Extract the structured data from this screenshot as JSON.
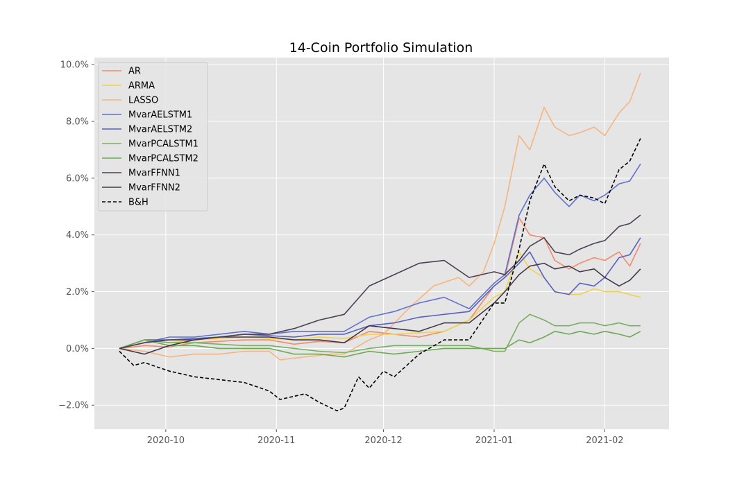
{
  "chart_data": {
    "type": "line",
    "title": "14-Coin Portfolio Simulation",
    "xlabel": "",
    "ylabel": "",
    "x_tick_labels": [
      "2020-10",
      "2020-11",
      "2020-12",
      "2021-01",
      "2021-02"
    ],
    "x_tick_dates": [
      "2020-10-01",
      "2020-11-01",
      "2020-12-01",
      "2021-01-01",
      "2021-02-01"
    ],
    "xlim": [
      "2020-09-11",
      "2021-02-19"
    ],
    "y_tick_labels": [
      "−2.0%",
      "0.0%",
      "2.0%",
      "4.0%",
      "6.0%",
      "8.0%",
      "10.0%"
    ],
    "y_ticks": [
      -2,
      0,
      2,
      4,
      6,
      8,
      10
    ],
    "ylim": [
      -2.85,
      10.25
    ],
    "y_unit": "%",
    "grid": true,
    "legend_position": "upper-left",
    "background": "#e5e5e5",
    "grid_color": "#ffffff",
    "series": [
      {
        "name": "AR",
        "color": "#f28b6b",
        "dash": "solid",
        "x": [
          "2020-09-18",
          "2020-09-25",
          "2020-10-02",
          "2020-10-09",
          "2020-10-16",
          "2020-10-23",
          "2020-10-30",
          "2020-11-06",
          "2020-11-13",
          "2020-11-20",
          "2020-11-27",
          "2020-12-04",
          "2020-12-11",
          "2020-12-18",
          "2020-12-25",
          "2021-01-01",
          "2021-01-04",
          "2021-01-08",
          "2021-01-11",
          "2021-01-15",
          "2021-01-18",
          "2021-01-22",
          "2021-01-25",
          "2021-01-29",
          "2021-02-01",
          "2021-02-05",
          "2021-02-08",
          "2021-02-11"
        ],
        "values": [
          0.0,
          0.1,
          0.05,
          0.2,
          0.25,
          0.3,
          0.3,
          0.15,
          0.25,
          0.2,
          0.6,
          0.5,
          0.4,
          0.6,
          1.0,
          2.2,
          2.5,
          4.6,
          4.0,
          3.9,
          3.1,
          2.8,
          3.0,
          3.2,
          3.1,
          3.4,
          2.9,
          3.7
        ]
      },
      {
        "name": "ARMA",
        "color": "#f0d24c",
        "dash": "solid",
        "x": [
          "2020-09-18",
          "2020-09-25",
          "2020-10-02",
          "2020-10-09",
          "2020-10-16",
          "2020-10-23",
          "2020-10-30",
          "2020-11-06",
          "2020-11-13",
          "2020-11-20",
          "2020-11-27",
          "2020-12-04",
          "2020-12-11",
          "2020-12-18",
          "2020-12-25",
          "2021-01-01",
          "2021-01-04",
          "2021-01-08",
          "2021-01-11",
          "2021-01-15",
          "2021-01-18",
          "2021-01-22",
          "2021-01-25",
          "2021-01-29",
          "2021-02-01",
          "2021-02-05",
          "2021-02-08",
          "2021-02-11"
        ],
        "values": [
          0.0,
          0.3,
          0.2,
          0.3,
          0.35,
          0.4,
          0.35,
          0.3,
          0.4,
          0.35,
          0.5,
          0.5,
          0.55,
          0.6,
          1.0,
          1.8,
          2.0,
          3.4,
          2.8,
          2.5,
          2.0,
          1.9,
          1.9,
          2.1,
          2.0,
          2.0,
          1.9,
          1.8
        ]
      },
      {
        "name": "LASSO",
        "color": "#f7b47f",
        "dash": "solid",
        "x": [
          "2020-09-18",
          "2020-09-25",
          "2020-10-02",
          "2020-10-09",
          "2020-10-16",
          "2020-10-23",
          "2020-10-30",
          "2020-11-02",
          "2020-11-09",
          "2020-11-16",
          "2020-11-20",
          "2020-11-27",
          "2020-12-01",
          "2020-12-08",
          "2020-12-15",
          "2020-12-22",
          "2020-12-25",
          "2020-12-29",
          "2021-01-01",
          "2021-01-04",
          "2021-01-08",
          "2021-01-11",
          "2021-01-15",
          "2021-01-18",
          "2021-01-22",
          "2021-01-25",
          "2021-01-29",
          "2021-02-01",
          "2021-02-05",
          "2021-02-08",
          "2021-02-11"
        ],
        "values": [
          0.0,
          -0.1,
          -0.3,
          -0.2,
          -0.2,
          -0.1,
          -0.1,
          -0.4,
          -0.3,
          -0.2,
          -0.2,
          0.3,
          0.5,
          1.4,
          2.2,
          2.5,
          2.2,
          2.7,
          3.7,
          5.0,
          7.5,
          7.0,
          8.5,
          7.8,
          7.5,
          7.6,
          7.8,
          7.5,
          8.3,
          8.7,
          9.7
        ]
      },
      {
        "name": "MvarAELSTM1",
        "color": "#6171cf",
        "dash": "solid",
        "x": [
          "2020-09-18",
          "2020-09-25",
          "2020-10-02",
          "2020-10-09",
          "2020-10-16",
          "2020-10-23",
          "2020-10-30",
          "2020-11-06",
          "2020-11-13",
          "2020-11-20",
          "2020-11-27",
          "2020-12-04",
          "2020-12-11",
          "2020-12-18",
          "2020-12-25",
          "2021-01-01",
          "2021-01-04",
          "2021-01-08",
          "2021-01-11",
          "2021-01-15",
          "2021-01-18",
          "2021-01-22",
          "2021-01-25",
          "2021-01-29",
          "2021-02-01",
          "2021-02-05",
          "2021-02-08",
          "2021-02-11"
        ],
        "values": [
          0.0,
          0.2,
          0.4,
          0.4,
          0.5,
          0.6,
          0.5,
          0.6,
          0.6,
          0.6,
          1.1,
          1.3,
          1.6,
          1.8,
          1.4,
          2.3,
          2.6,
          4.7,
          5.4,
          6.0,
          5.5,
          5.0,
          5.4,
          5.2,
          5.4,
          5.8,
          5.9,
          6.5
        ]
      },
      {
        "name": "MvarAELSTM2",
        "color": "#5a5fbf",
        "dash": "solid",
        "x": [
          "2020-09-18",
          "2020-09-25",
          "2020-10-02",
          "2020-10-09",
          "2020-10-16",
          "2020-10-23",
          "2020-10-30",
          "2020-11-06",
          "2020-11-13",
          "2020-11-20",
          "2020-11-27",
          "2020-12-04",
          "2020-12-11",
          "2020-12-18",
          "2020-12-25",
          "2021-01-01",
          "2021-01-04",
          "2021-01-08",
          "2021-01-11",
          "2021-01-15",
          "2021-01-18",
          "2021-01-22",
          "2021-01-25",
          "2021-01-29",
          "2021-02-01",
          "2021-02-05",
          "2021-02-08",
          "2021-02-11"
        ],
        "values": [
          0.0,
          0.3,
          0.3,
          0.35,
          0.4,
          0.5,
          0.45,
          0.4,
          0.5,
          0.5,
          0.8,
          0.9,
          1.1,
          1.2,
          1.3,
          2.2,
          2.5,
          3.0,
          3.4,
          2.5,
          2.0,
          1.9,
          2.3,
          2.2,
          2.5,
          3.2,
          3.3,
          3.9
        ]
      },
      {
        "name": "MvarPCALSTM1",
        "color": "#78b060",
        "dash": "solid",
        "x": [
          "2020-09-18",
          "2020-09-25",
          "2020-10-02",
          "2020-10-09",
          "2020-10-16",
          "2020-10-23",
          "2020-10-30",
          "2020-11-06",
          "2020-11-13",
          "2020-11-20",
          "2020-11-27",
          "2020-12-04",
          "2020-12-11",
          "2020-12-18",
          "2020-12-25",
          "2021-01-01",
          "2021-01-04",
          "2021-01-08",
          "2021-01-11",
          "2021-01-15",
          "2021-01-18",
          "2021-01-22",
          "2021-01-25",
          "2021-01-29",
          "2021-02-01",
          "2021-02-05",
          "2021-02-08",
          "2021-02-11"
        ],
        "values": [
          0.0,
          0.3,
          0.2,
          0.2,
          0.15,
          0.1,
          0.1,
          0.0,
          -0.1,
          -0.15,
          0.0,
          0.1,
          0.1,
          0.1,
          0.1,
          -0.1,
          -0.1,
          0.9,
          1.2,
          1.0,
          0.8,
          0.8,
          0.9,
          0.9,
          0.8,
          0.9,
          0.8,
          0.8
        ]
      },
      {
        "name": "MvarPCALSTM2",
        "color": "#6fa855",
        "dash": "solid",
        "x": [
          "2020-09-18",
          "2020-09-25",
          "2020-10-02",
          "2020-10-09",
          "2020-10-16",
          "2020-10-23",
          "2020-10-30",
          "2020-11-06",
          "2020-11-13",
          "2020-11-20",
          "2020-11-27",
          "2020-12-04",
          "2020-12-11",
          "2020-12-18",
          "2020-12-25",
          "2021-01-01",
          "2021-01-04",
          "2021-01-08",
          "2021-01-11",
          "2021-01-15",
          "2021-01-18",
          "2021-01-22",
          "2021-01-25",
          "2021-01-29",
          "2021-02-01",
          "2021-02-05",
          "2021-02-08",
          "2021-02-11"
        ],
        "values": [
          0.0,
          0.3,
          0.1,
          0.1,
          0.0,
          0.0,
          0.0,
          -0.2,
          -0.2,
          -0.3,
          -0.1,
          -0.2,
          -0.1,
          0.0,
          0.0,
          0.0,
          0.0,
          0.3,
          0.2,
          0.4,
          0.6,
          0.5,
          0.6,
          0.5,
          0.6,
          0.5,
          0.4,
          0.6
        ]
      },
      {
        "name": "MvarFFNN1",
        "color": "#4b3f52",
        "dash": "solid",
        "x": [
          "2020-09-18",
          "2020-09-25",
          "2020-10-02",
          "2020-10-09",
          "2020-10-16",
          "2020-10-23",
          "2020-10-30",
          "2020-11-06",
          "2020-11-13",
          "2020-11-20",
          "2020-11-27",
          "2020-12-04",
          "2020-12-11",
          "2020-12-18",
          "2020-12-25",
          "2021-01-01",
          "2021-01-04",
          "2021-01-08",
          "2021-01-11",
          "2021-01-15",
          "2021-01-18",
          "2021-01-22",
          "2021-01-25",
          "2021-01-29",
          "2021-02-01",
          "2021-02-05",
          "2021-02-08",
          "2021-02-11"
        ],
        "values": [
          0.0,
          0.2,
          0.3,
          0.3,
          0.4,
          0.5,
          0.5,
          0.7,
          1.0,
          1.2,
          2.2,
          2.6,
          3.0,
          3.1,
          2.5,
          2.7,
          2.6,
          3.1,
          3.6,
          3.9,
          3.4,
          3.3,
          3.5,
          3.7,
          3.8,
          4.3,
          4.4,
          4.7
        ]
      },
      {
        "name": "MvarFFNN2",
        "color": "#43384a",
        "dash": "solid",
        "x": [
          "2020-09-18",
          "2020-09-25",
          "2020-10-02",
          "2020-10-09",
          "2020-10-16",
          "2020-10-23",
          "2020-10-30",
          "2020-11-06",
          "2020-11-13",
          "2020-11-20",
          "2020-11-27",
          "2020-12-04",
          "2020-12-11",
          "2020-12-18",
          "2020-12-25",
          "2021-01-01",
          "2021-01-04",
          "2021-01-08",
          "2021-01-11",
          "2021-01-15",
          "2021-01-18",
          "2021-01-22",
          "2021-01-25",
          "2021-01-29",
          "2021-02-01",
          "2021-02-05",
          "2021-02-08",
          "2021-02-11"
        ],
        "values": [
          0.0,
          -0.2,
          0.1,
          0.3,
          0.4,
          0.4,
          0.4,
          0.3,
          0.3,
          0.2,
          0.8,
          0.7,
          0.6,
          0.9,
          0.9,
          1.6,
          2.0,
          2.6,
          2.9,
          3.0,
          2.8,
          2.9,
          2.7,
          2.8,
          2.5,
          2.2,
          2.4,
          2.8
        ]
      },
      {
        "name": "B&H",
        "color": "#000000",
        "dash": "dashed",
        "x": [
          "2020-09-18",
          "2020-09-22",
          "2020-09-25",
          "2020-10-02",
          "2020-10-09",
          "2020-10-16",
          "2020-10-23",
          "2020-10-30",
          "2020-11-02",
          "2020-11-09",
          "2020-11-13",
          "2020-11-18",
          "2020-11-20",
          "2020-11-24",
          "2020-11-27",
          "2020-12-01",
          "2020-12-04",
          "2020-12-11",
          "2020-12-18",
          "2020-12-25",
          "2021-01-01",
          "2021-01-04",
          "2021-01-08",
          "2021-01-11",
          "2021-01-15",
          "2021-01-18",
          "2021-01-22",
          "2021-01-25",
          "2021-01-29",
          "2021-02-01",
          "2021-02-05",
          "2021-02-08",
          "2021-02-11"
        ],
        "values": [
          -0.1,
          -0.6,
          -0.5,
          -0.8,
          -1.0,
          -1.1,
          -1.2,
          -1.5,
          -1.8,
          -1.6,
          -1.9,
          -2.2,
          -2.1,
          -1.0,
          -1.4,
          -0.8,
          -1.0,
          -0.2,
          0.3,
          0.3,
          1.6,
          1.6,
          3.5,
          5.2,
          6.5,
          5.7,
          5.2,
          5.4,
          5.3,
          5.1,
          6.3,
          6.6,
          7.4
        ]
      }
    ]
  }
}
